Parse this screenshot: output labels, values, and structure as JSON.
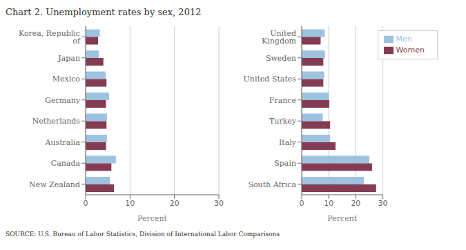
{
  "chart_data": [
    {
      "type": "bar",
      "orientation": "horizontal",
      "title": "Chart 2. Unemployment rates by sex, 2012",
      "annotations": [
        "SOURCE: U.S. Bureau of Labor Statistics, Division of International Labor Comparisons"
      ],
      "categories": [
        "New Zealand",
        "Canada",
        "Australia",
        "Netherlands",
        "Germany",
        "Mexico",
        "Japan",
        "Korea, Republic of"
      ],
      "series": [
        {
          "name": "Men",
          "color": "#9dc3e0",
          "values": [
            5.5,
            6.8,
            4.8,
            4.8,
            5.3,
            4.5,
            3.0,
            3.2
          ]
        },
        {
          "name": "Women",
          "color": "#833c51",
          "values": [
            6.4,
            5.8,
            4.6,
            4.7,
            4.6,
            4.7,
            4.0,
            2.8
          ]
        }
      ],
      "xlabel": "Percent",
      "xlim": [
        0,
        30
      ],
      "xticks": [
        0,
        10,
        20,
        30
      ],
      "grid": true
    },
    {
      "type": "bar",
      "orientation": "horizontal",
      "categories": [
        "South Africa",
        "Spain",
        "Italy",
        "Turkey",
        "France",
        "United States",
        "Sweden",
        "United Kingdom"
      ],
      "series": [
        {
          "name": "Men",
          "color": "#9dc3e0",
          "values": [
            23.0,
            25.0,
            10.5,
            7.8,
            10.0,
            8.3,
            8.6,
            8.5
          ]
        },
        {
          "name": "Women",
          "color": "#833c51",
          "values": [
            27.5,
            26.0,
            12.5,
            10.5,
            10.2,
            8.0,
            8.0,
            7.0
          ]
        }
      ],
      "xlabel": "Percent",
      "xlim": [
        0,
        30
      ],
      "xticks": [
        0,
        10,
        20,
        30
      ],
      "grid": true,
      "legend": "upper right"
    }
  ]
}
